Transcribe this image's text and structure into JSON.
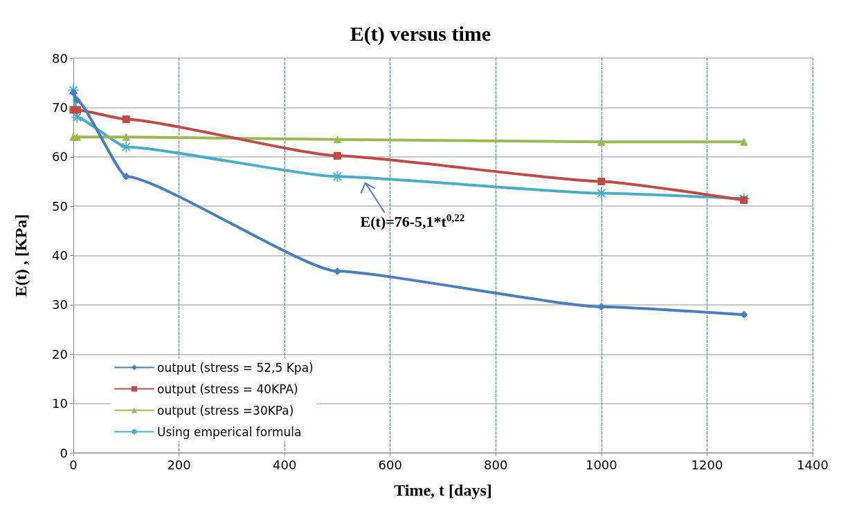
{
  "chart_data": {
    "type": "line",
    "title": "E(t) versus time",
    "xlabel": "Time, t [days]",
    "ylabel": "E(t) , [KPa]",
    "xlim": [
      0,
      1400
    ],
    "xticks": [
      0,
      200,
      400,
      600,
      800,
      1000,
      1200,
      1400
    ],
    "ylim": [
      0,
      80
    ],
    "yticks": [
      0,
      10,
      20,
      30,
      40,
      50,
      60,
      70,
      80
    ],
    "grid": true,
    "legend": "bottom left",
    "line_style": "solid",
    "annotations": [
      {
        "text": "E(t)=76-5,1*t$^{0,22}$",
        "x": 550,
        "y": 55.4
      }
    ],
    "series": [
      {
        "name": "output (stress = 52,5 Kpa)",
        "color": "#4a7ebb",
        "marker": "diamond",
        "x": [
          0,
          7,
          100,
          500,
          1000,
          1270
        ],
        "values": [
          73,
          71.5,
          56,
          36.8,
          29.6,
          28
        ]
      },
      {
        "name": "output (stress = 40KPA)",
        "color": "#be4b48",
        "marker": "square",
        "x": [
          0,
          7,
          100,
          500,
          1000,
          1270
        ],
        "values": [
          69.5,
          69.5,
          67.6,
          60.2,
          55,
          51.2
        ]
      },
      {
        "name": "output (stress =30KPa)",
        "color": "#98b954",
        "marker": "triangle",
        "x": [
          0,
          7,
          100,
          500,
          1000,
          1270
        ],
        "values": [
          64,
          64,
          64,
          63.5,
          63,
          63
        ]
      },
      {
        "name": "Using emperical formula",
        "color": "#4bacc6",
        "marker": "cross",
        "x": [
          0,
          7,
          100,
          500,
          1000,
          1270
        ],
        "values": [
          73.5,
          68,
          62,
          56,
          52.6,
          51.5
        ]
      }
    ]
  }
}
